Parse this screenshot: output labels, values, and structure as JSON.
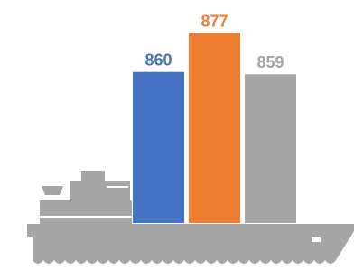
{
  "chart_data": {
    "type": "bar",
    "categories": [
      null,
      null,
      null
    ],
    "values": [
      860,
      877,
      859
    ],
    "colors": [
      "#4472c4",
      "#ed7d31",
      "#a5a5a5"
    ],
    "ylim": [
      794,
      880
    ]
  }
}
